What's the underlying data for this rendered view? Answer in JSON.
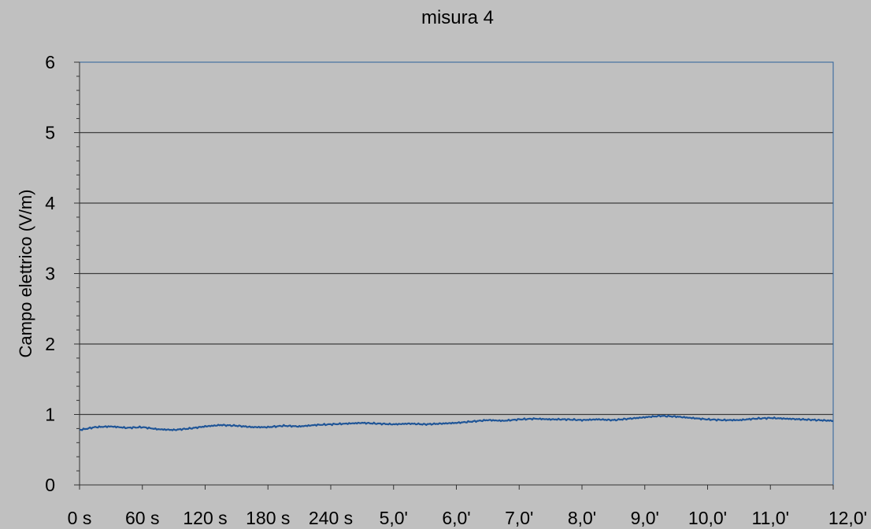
{
  "colors": {
    "background": "#c0c0c0",
    "plot_border": "#2a5f9a",
    "gridline": "#3c3c3c",
    "series": "#1f5597"
  },
  "chart_data": {
    "type": "line",
    "title": "misura 4",
    "xlabel": "",
    "ylabel": "Campo elettrico (V/m)",
    "ylim": [
      0,
      6
    ],
    "y_ticks": [
      0,
      1,
      2,
      3,
      4,
      5,
      6
    ],
    "grid": true,
    "x_tick_labels": [
      "0 s",
      "60 s",
      "120 s",
      "180 s",
      "240 s",
      "5,0'",
      "6,0'",
      "7,0'",
      "8,0'",
      "9,0'",
      "10,0'",
      "11,0'",
      "12,0'"
    ],
    "series": [
      {
        "name": "",
        "x": [
          0,
          15,
          30,
          45,
          60,
          75,
          90,
          105,
          120,
          135,
          150,
          165,
          180,
          195,
          210,
          225,
          240,
          255,
          270,
          285,
          300,
          315,
          330,
          345,
          360,
          375,
          390,
          405,
          420,
          435,
          450,
          465,
          480,
          495,
          510,
          525,
          540,
          555,
          570,
          585,
          600,
          615,
          630,
          645,
          660,
          675,
          690,
          705,
          720
        ],
        "y": [
          0.78,
          0.82,
          0.83,
          0.81,
          0.82,
          0.79,
          0.78,
          0.8,
          0.83,
          0.85,
          0.84,
          0.82,
          0.82,
          0.84,
          0.83,
          0.85,
          0.86,
          0.87,
          0.88,
          0.87,
          0.86,
          0.87,
          0.86,
          0.87,
          0.88,
          0.9,
          0.92,
          0.91,
          0.93,
          0.94,
          0.93,
          0.93,
          0.92,
          0.93,
          0.92,
          0.94,
          0.96,
          0.98,
          0.97,
          0.95,
          0.93,
          0.92,
          0.92,
          0.94,
          0.95,
          0.94,
          0.93,
          0.92,
          0.91
        ]
      }
    ]
  }
}
